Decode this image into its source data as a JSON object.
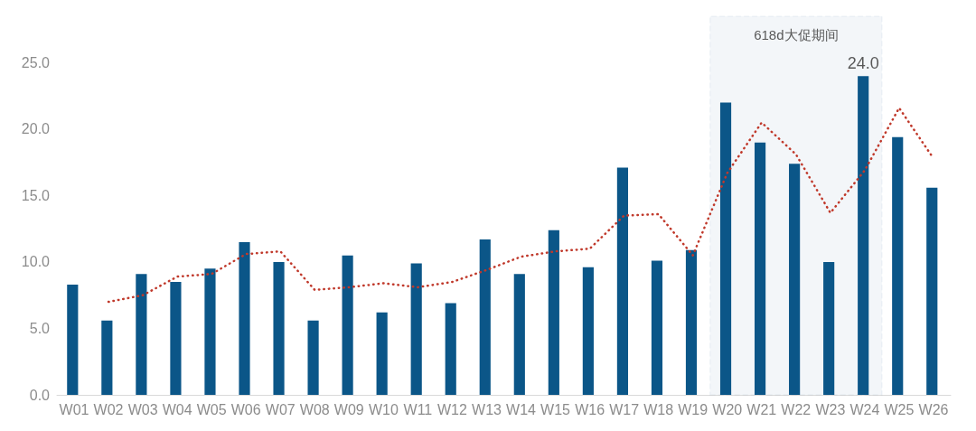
{
  "chart_data": {
    "type": "bar",
    "categories": [
      "W01",
      "W02",
      "W03",
      "W04",
      "W05",
      "W06",
      "W07",
      "W08",
      "W09",
      "W10",
      "W11",
      "W12",
      "W13",
      "W14",
      "W15",
      "W16",
      "W17",
      "W18",
      "W19",
      "W20",
      "W21",
      "W22",
      "W23",
      "W24",
      "W25",
      "W26"
    ],
    "series": [
      {
        "color": "#0b5688",
        "values": [
          8.3,
          5.6,
          9.1,
          8.5,
          9.5,
          11.5,
          10.0,
          5.6,
          10.5,
          6.2,
          9.9,
          6.9,
          11.7,
          9.1,
          12.4,
          9.6,
          17.1,
          10.1,
          10.9,
          22.0,
          19.0,
          17.4,
          10.0,
          24.0,
          19.4,
          15.6
        ],
        "value_labels": [
          null,
          null,
          null,
          null,
          null,
          null,
          null,
          null,
          null,
          null,
          null,
          null,
          null,
          null,
          null,
          null,
          null,
          null,
          null,
          null,
          null,
          null,
          null,
          "24.0",
          null,
          null
        ]
      },
      {
        "type": "line",
        "color": "#c0392b",
        "line_style": "dotted",
        "marker": "none",
        "values": [
          null,
          7.0,
          7.5,
          8.9,
          9.1,
          10.6,
          10.8,
          7.9,
          8.1,
          8.4,
          8.1,
          8.5,
          9.4,
          10.4,
          10.8,
          11.0,
          13.5,
          13.6,
          10.5,
          16.7,
          20.5,
          18.1,
          13.7,
          16.9,
          21.6,
          17.8
        ]
      }
    ],
    "ylim": [
      0,
      28.5
    ],
    "yticks": [
      {
        "value": 0,
        "label": "0.0"
      },
      {
        "value": 5,
        "label": "5.0"
      },
      {
        "value": 10,
        "label": "10.0"
      },
      {
        "value": 15,
        "label": "15.0"
      },
      {
        "value": 20,
        "label": "20.0"
      },
      {
        "value": 25,
        "label": "25.0"
      }
    ],
    "bands": [
      {
        "axis": "x",
        "from": "W20",
        "to": "W24",
        "label": "618d大促期间",
        "color": "#2e6a96"
      }
    ],
    "grid": false
  }
}
